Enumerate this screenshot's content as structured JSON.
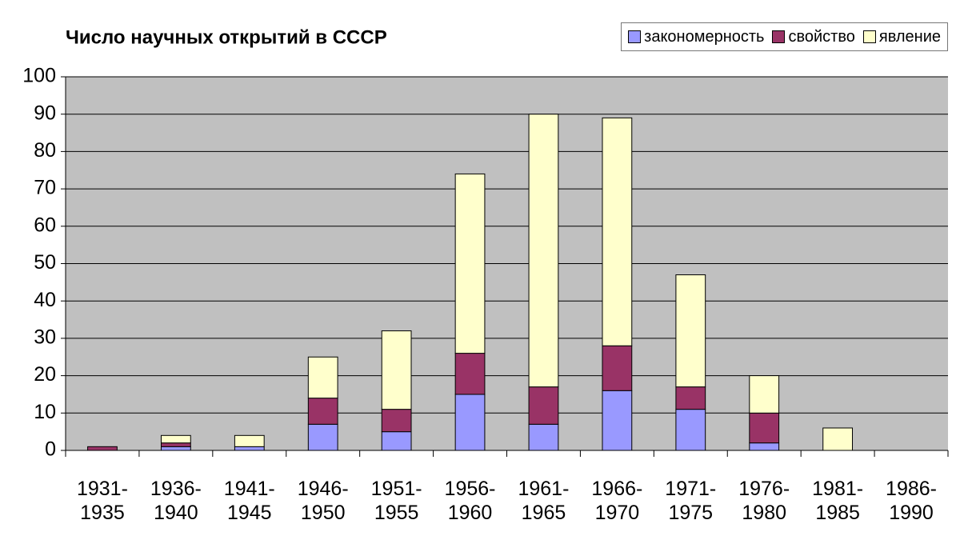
{
  "chart_data": {
    "type": "stacked_bar",
    "title": "Число научных открытий в СССР",
    "categories": [
      "1931-1935",
      "1936-1940",
      "1941-1945",
      "1946-1950",
      "1951-1955",
      "1956-1960",
      "1961-1965",
      "1966-1970",
      "1971-1975",
      "1976-1980",
      "1981-1985",
      "1986-1990"
    ],
    "series": [
      {
        "name": "закономерность",
        "color": "#9999ff",
        "values": [
          0,
          1,
          1,
          7,
          5,
          15,
          7,
          16,
          11,
          2,
          0,
          0
        ]
      },
      {
        "name": "свойство",
        "color": "#993366",
        "values": [
          1,
          1,
          0,
          7,
          6,
          11,
          10,
          12,
          6,
          8,
          0,
          0
        ]
      },
      {
        "name": "явление",
        "color": "#ffffcc",
        "values": [
          0,
          2,
          3,
          11,
          21,
          48,
          73,
          61,
          30,
          10,
          6,
          0
        ]
      }
    ],
    "ylim": [
      0,
      100
    ],
    "yticks": [
      0,
      10,
      20,
      30,
      40,
      50,
      60,
      70,
      80,
      90,
      100
    ],
    "grid": true,
    "legend": "top-right",
    "plot_background": "#c0c0c0"
  }
}
